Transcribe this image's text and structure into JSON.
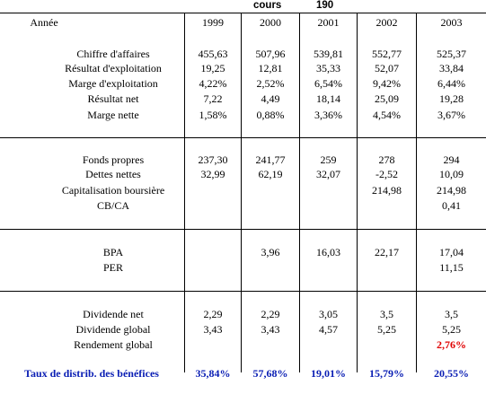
{
  "header": {
    "cours_label": "cours",
    "price_value": "190"
  },
  "year_label": "Année",
  "years": [
    "1999",
    "2000",
    "2001",
    "2002",
    "2003"
  ],
  "section1": [
    {
      "label": "Chiffre d'affaires",
      "values": [
        "455,63",
        "507,96",
        "539,81",
        "552,77",
        "525,37"
      ]
    },
    {
      "label": "Résultat d'exploitation",
      "values": [
        "19,25",
        "12,81",
        "35,33",
        "52,07",
        "33,84"
      ]
    },
    {
      "label": "Marge d'exploitation",
      "values": [
        "4,22%",
        "2,52%",
        "6,54%",
        "9,42%",
        "6,44%"
      ]
    },
    {
      "label": "Résultat net",
      "values": [
        "7,22",
        "4,49",
        "18,14",
        "25,09",
        "19,28"
      ]
    },
    {
      "label": "Marge nette",
      "values": [
        "1,58%",
        "0,88%",
        "3,36%",
        "4,54%",
        "3,67%"
      ]
    }
  ],
  "section2": [
    {
      "label": "Fonds propres",
      "values": [
        "237,30",
        "241,77",
        "259",
        "278",
        "294"
      ]
    },
    {
      "label": "Dettes nettes",
      "values": [
        "32,99",
        "62,19",
        "32,07",
        "-2,52",
        "10,09"
      ]
    },
    {
      "label": "Capitalisation boursière",
      "values": [
        "",
        "",
        "",
        "214,98",
        "214,98"
      ]
    },
    {
      "label": "CB/CA",
      "values": [
        "",
        "",
        "",
        "",
        "0,41"
      ]
    }
  ],
  "section3": [
    {
      "label": "BPA",
      "values": [
        "",
        "3,96",
        "16,03",
        "22,17",
        "17,04"
      ]
    },
    {
      "label": "PER",
      "values": [
        "",
        "",
        "",
        "",
        "11,15"
      ]
    }
  ],
  "section4": [
    {
      "label": "Dividende net",
      "values": [
        "2,29",
        "2,29",
        "3,05",
        "3,5",
        "3,5"
      ]
    },
    {
      "label": "Dividende global",
      "values": [
        "3,43",
        "3,43",
        "4,57",
        "5,25",
        "5,25"
      ]
    },
    {
      "label": "Rendement global",
      "values": [
        "",
        "",
        "",
        "",
        "2,76%"
      ]
    }
  ],
  "footer": {
    "label": "Taux de distrib. des bénéfices",
    "values": [
      "35,84%",
      "57,68%",
      "19,01%",
      "15,79%",
      "20,55%"
    ]
  },
  "colors": {
    "footer_text": "#0a1eb4",
    "highlight": "#e00000"
  }
}
